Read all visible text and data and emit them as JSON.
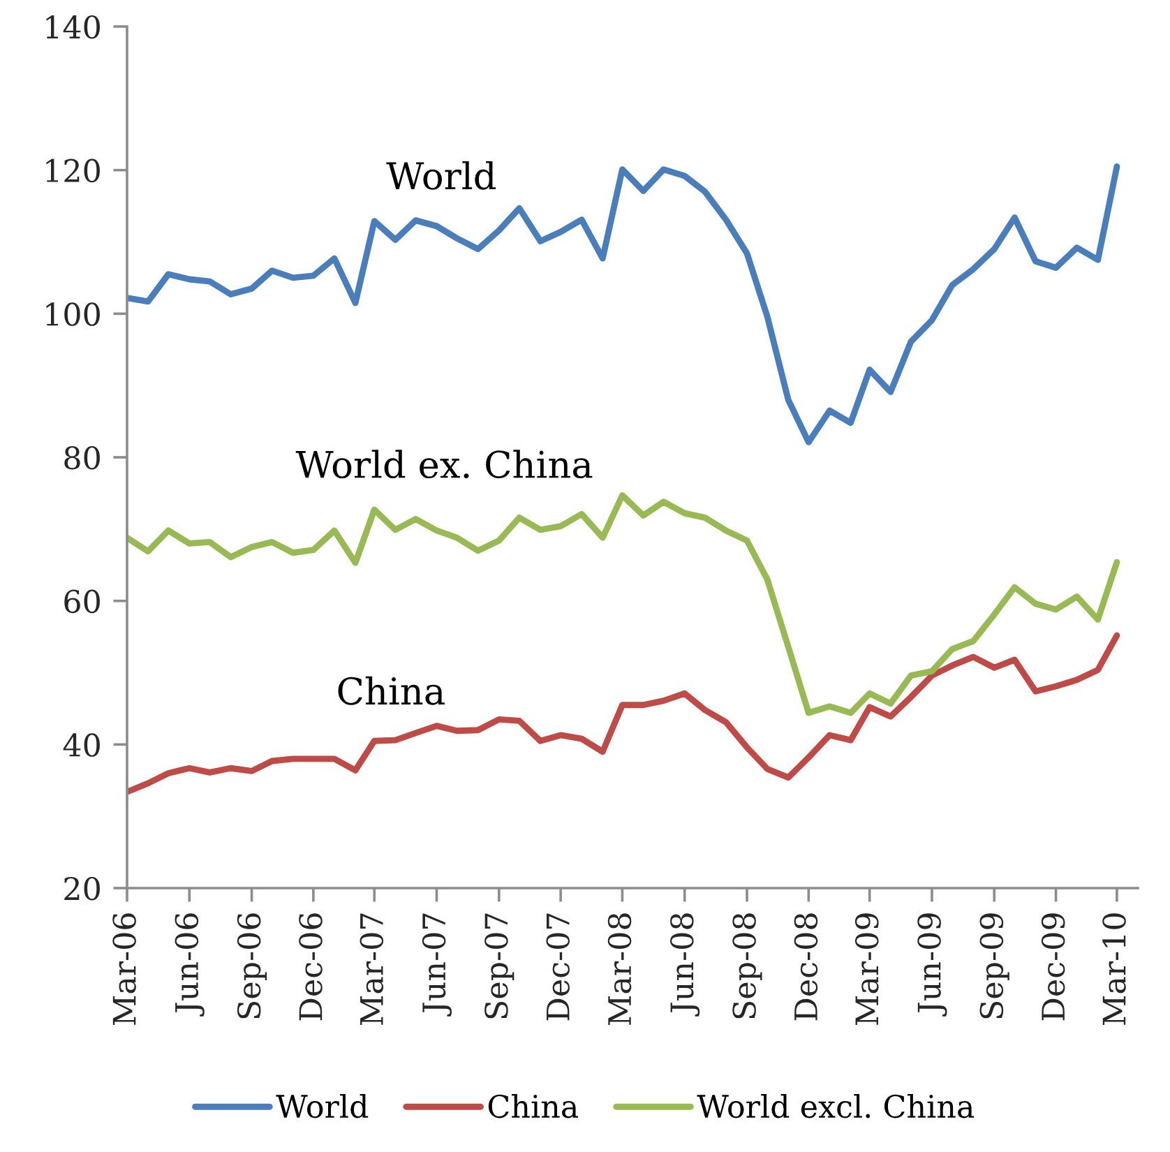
{
  "chart_data": {
    "type": "line",
    "x": [
      "2006-03",
      "2006-04",
      "2006-05",
      "2006-06",
      "2006-07",
      "2006-08",
      "2006-09",
      "2006-10",
      "2006-11",
      "2006-12",
      "2007-01",
      "2007-02",
      "2007-03",
      "2007-04",
      "2007-05",
      "2007-06",
      "2007-07",
      "2007-08",
      "2007-09",
      "2007-10",
      "2007-11",
      "2007-12",
      "2008-01",
      "2008-02",
      "2008-03",
      "2008-04",
      "2008-05",
      "2008-06",
      "2008-07",
      "2008-08",
      "2008-09",
      "2008-10",
      "2008-11",
      "2008-12",
      "2009-01",
      "2009-02",
      "2009-03",
      "2009-04",
      "2009-05",
      "2009-06",
      "2009-07",
      "2009-08",
      "2009-09",
      "2009-10",
      "2009-11",
      "2009-12",
      "2010-01",
      "2010-02",
      "2010-03"
    ],
    "xlim": [
      "2006-03",
      "2010-04"
    ],
    "xticks": [
      {
        "value": "2006-03",
        "label": "Mar-06"
      },
      {
        "value": "2006-06",
        "label": "Jun-06"
      },
      {
        "value": "2006-09",
        "label": "Sep-06"
      },
      {
        "value": "2006-12",
        "label": "Dec-06"
      },
      {
        "value": "2007-03",
        "label": "Mar-07"
      },
      {
        "value": "2007-06",
        "label": "Jun-07"
      },
      {
        "value": "2007-09",
        "label": "Sep-07"
      },
      {
        "value": "2007-12",
        "label": "Dec-07"
      },
      {
        "value": "2008-03",
        "label": "Mar-08"
      },
      {
        "value": "2008-06",
        "label": "Jun-08"
      },
      {
        "value": "2008-09",
        "label": "Sep-08"
      },
      {
        "value": "2008-12",
        "label": "Dec-08"
      },
      {
        "value": "2009-03",
        "label": "Mar-09"
      },
      {
        "value": "2009-06",
        "label": "Jun-09"
      },
      {
        "value": "2009-09",
        "label": "Sep-09"
      },
      {
        "value": "2009-12",
        "label": "Dec-09"
      },
      {
        "value": "2010-03",
        "label": "Mar-10"
      }
    ],
    "ylim": [
      20,
      140
    ],
    "yticks": [
      20,
      40,
      60,
      80,
      100,
      120,
      140
    ],
    "series": [
      {
        "name": "World",
        "color": "#4a7ebb",
        "values": [
          102.2,
          101.7,
          105.5,
          104.8,
          104.5,
          102.7,
          103.5,
          106.0,
          105.0,
          105.3,
          107.7,
          101.5,
          112.9,
          110.3,
          113.0,
          112.2,
          110.5,
          109.0,
          111.6,
          114.7,
          110.1,
          111.4,
          113.1,
          107.7,
          120.1,
          117.1,
          120.1,
          119.2,
          117.0,
          113.1,
          108.4,
          99.6,
          88.0,
          82.1,
          86.5,
          84.8,
          92.2,
          89.1,
          96.1,
          99.1,
          104.0,
          106.2,
          109.0,
          113.4,
          107.3,
          106.4,
          109.2,
          107.5,
          120.5
        ]
      },
      {
        "name": "China",
        "color": "#be4b48",
        "values": [
          33.4,
          34.6,
          36.0,
          36.7,
          36.1,
          36.7,
          36.3,
          37.7,
          38.0,
          38.0,
          38.0,
          36.4,
          40.5,
          40.6,
          41.6,
          42.6,
          41.9,
          42.0,
          43.5,
          43.3,
          40.5,
          41.3,
          40.8,
          39.0,
          45.5,
          45.5,
          46.1,
          47.1,
          44.8,
          43.1,
          39.6,
          36.6,
          35.4,
          38.2,
          41.3,
          40.6,
          45.2,
          43.9,
          46.6,
          49.6,
          51.0,
          52.2,
          50.7,
          51.8,
          47.4,
          48.1,
          49.0,
          50.4,
          55.2
        ]
      },
      {
        "name": "World excl. China",
        "color": "#98b954",
        "values": [
          68.8,
          66.9,
          69.8,
          68.0,
          68.2,
          66.1,
          67.5,
          68.2,
          66.7,
          67.1,
          69.8,
          65.3,
          72.7,
          69.9,
          71.4,
          69.8,
          68.8,
          67.0,
          68.4,
          71.6,
          69.9,
          70.4,
          72.1,
          68.8,
          74.7,
          71.9,
          73.8,
          72.2,
          71.6,
          69.8,
          68.4,
          63.0,
          53.6,
          44.4,
          45.3,
          44.4,
          47.1,
          45.7,
          49.6,
          50.2,
          53.3,
          54.4,
          58.1,
          61.9,
          59.6,
          58.8,
          60.6,
          57.4,
          65.4
        ]
      }
    ],
    "annotations": [
      "World",
      "World ex. China",
      "China"
    ],
    "legend": "bottom"
  }
}
